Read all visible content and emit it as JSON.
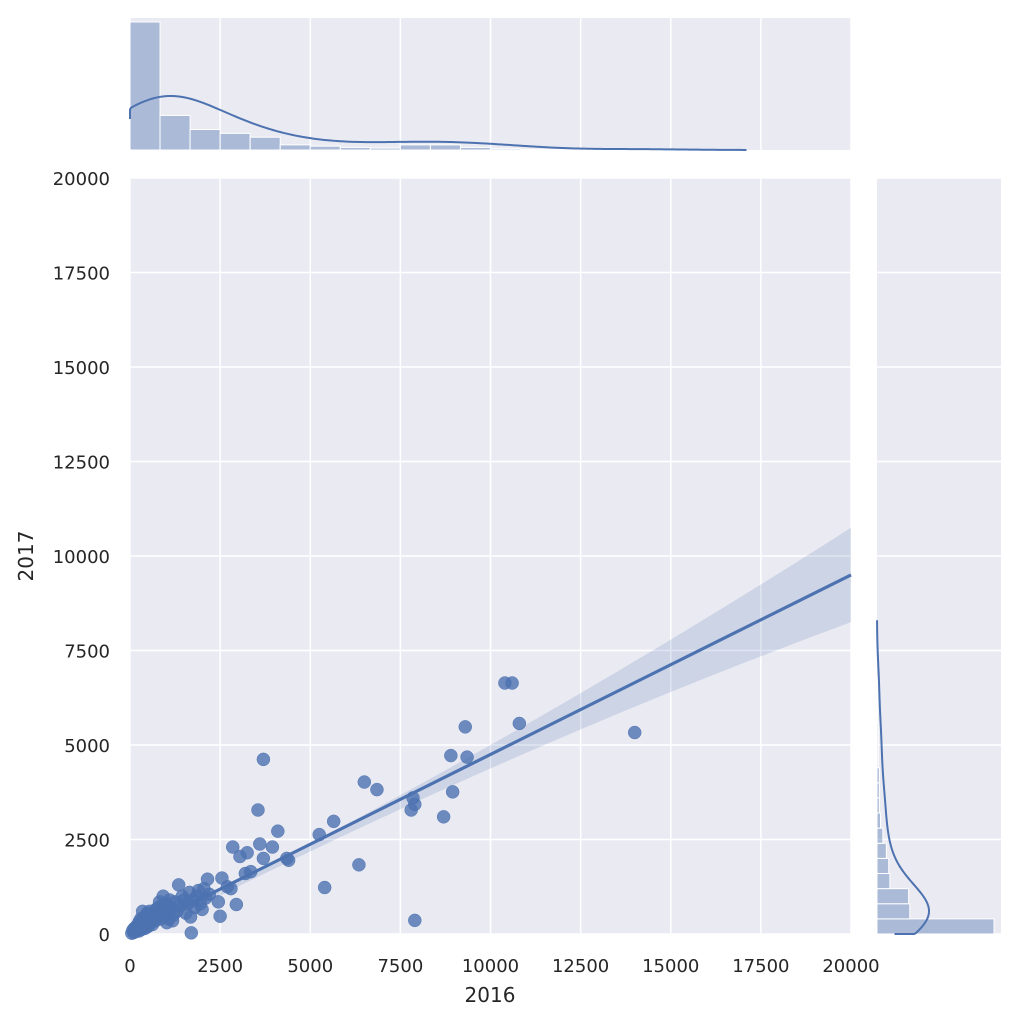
{
  "chart_data": {
    "type": "scatter",
    "kind": "jointplot with regression line, confidence band, marginal histograms and KDE",
    "xlabel": "2016",
    "ylabel": "2017",
    "xlim": [
      0,
      20000
    ],
    "ylim": [
      0,
      20000
    ],
    "x_ticks": [
      "0",
      "2500",
      "5000",
      "7500",
      "10000",
      "12500",
      "15000",
      "17500",
      "20000"
    ],
    "y_ticks": [
      "0",
      "2500",
      "5000",
      "7500",
      "10000",
      "12500",
      "15000",
      "17500",
      "20000"
    ],
    "grid": true,
    "colors": {
      "points": "#4c72b0",
      "line": "#4c72b0",
      "band": "#4c72b0",
      "hist": "#4c72b0",
      "background": "#eaeaf2",
      "grid": "#ffffff"
    },
    "regression": {
      "intercept": -120,
      "slope": 0.481,
      "band_half_width_at_xmax": 1250
    },
    "points": [
      [
        50,
        20
      ],
      [
        80,
        100
      ],
      [
        100,
        40
      ],
      [
        120,
        150
      ],
      [
        150,
        60
      ],
      [
        180,
        200
      ],
      [
        200,
        120
      ],
      [
        220,
        250
      ],
      [
        250,
        80
      ],
      [
        260,
        330
      ],
      [
        280,
        180
      ],
      [
        300,
        400
      ],
      [
        320,
        120
      ],
      [
        350,
        600
      ],
      [
        380,
        250
      ],
      [
        400,
        450
      ],
      [
        420,
        150
      ],
      [
        450,
        350
      ],
      [
        480,
        550
      ],
      [
        500,
        200
      ],
      [
        520,
        420
      ],
      [
        540,
        600
      ],
      [
        560,
        300
      ],
      [
        600,
        500
      ],
      [
        620,
        250
      ],
      [
        650,
        400
      ],
      [
        680,
        550
      ],
      [
        700,
        350
      ],
      [
        720,
        650
      ],
      [
        750,
        450
      ],
      [
        780,
        700
      ],
      [
        800,
        550
      ],
      [
        820,
        850
      ],
      [
        850,
        400
      ],
      [
        880,
        600
      ],
      [
        900,
        750
      ],
      [
        920,
        1000
      ],
      [
        950,
        500
      ],
      [
        980,
        800
      ],
      [
        1000,
        650
      ],
      [
        1020,
        300
      ],
      [
        1050,
        550
      ],
      [
        1080,
        400
      ],
      [
        1100,
        900
      ],
      [
        1150,
        700
      ],
      [
        1180,
        350
      ],
      [
        1200,
        500
      ],
      [
        1250,
        850
      ],
      [
        1300,
        600
      ],
      [
        1350,
        1300
      ],
      [
        1400,
        750
      ],
      [
        1450,
        1000
      ],
      [
        1500,
        900
      ],
      [
        1550,
        550
      ],
      [
        1600,
        800
      ],
      [
        1650,
        1100
      ],
      [
        1680,
        450
      ],
      [
        1700,
        30
      ],
      [
        1750,
        900
      ],
      [
        1800,
        700
      ],
      [
        1850,
        1000
      ],
      [
        1900,
        1150
      ],
      [
        1950,
        800
      ],
      [
        2000,
        650
      ],
      [
        2050,
        1200
      ],
      [
        2100,
        950
      ],
      [
        2150,
        1450
      ],
      [
        2200,
        1050
      ],
      [
        2450,
        850
      ],
      [
        2500,
        470
      ],
      [
        2550,
        1480
      ],
      [
        2700,
        1250
      ],
      [
        2800,
        1200
      ],
      [
        2850,
        2300
      ],
      [
        2950,
        780
      ],
      [
        3050,
        2050
      ],
      [
        3200,
        1600
      ],
      [
        3250,
        2150
      ],
      [
        3350,
        1650
      ],
      [
        3550,
        3280
      ],
      [
        3600,
        2380
      ],
      [
        3700,
        4620
      ],
      [
        3700,
        2000
      ],
      [
        3950,
        2300
      ],
      [
        4100,
        2720
      ],
      [
        4350,
        2000
      ],
      [
        4400,
        1950
      ],
      [
        5250,
        2630
      ],
      [
        5400,
        1230
      ],
      [
        5650,
        2980
      ],
      [
        6350,
        1830
      ],
      [
        6500,
        4020
      ],
      [
        6850,
        3820
      ],
      [
        7800,
        3280
      ],
      [
        7850,
        3600
      ],
      [
        7900,
        3430
      ],
      [
        7900,
        360
      ],
      [
        8700,
        3100
      ],
      [
        8900,
        4720
      ],
      [
        8950,
        3760
      ],
      [
        9300,
        5480
      ],
      [
        9350,
        4680
      ],
      [
        10400,
        6640
      ],
      [
        10600,
        6640
      ],
      [
        10800,
        5570
      ],
      [
        14000,
        5330
      ]
    ],
    "top_histogram": {
      "bin_edges": [
        0,
        833,
        1667,
        2500,
        3333,
        4167,
        5000,
        5833,
        6667,
        7500,
        8333,
        9167,
        10000,
        10833,
        11667,
        12500,
        13333,
        14167
      ],
      "densities": [
        1.0,
        0.27,
        0.16,
        0.13,
        0.1,
        0.04,
        0.03,
        0.02,
        0.015,
        0.04,
        0.04,
        0.02,
        0.01,
        0.005,
        0.003,
        0.002,
        0.002
      ]
    },
    "right_histogram": {
      "bin_edges": [
        0,
        400,
        800,
        1200,
        1600,
        2000,
        2400,
        2800,
        3200,
        3600,
        4000,
        4400,
        4800,
        5200,
        5600,
        6000,
        6400,
        6800
      ],
      "densities": [
        1.0,
        0.28,
        0.27,
        0.11,
        0.1,
        0.08,
        0.05,
        0.03,
        0.02,
        0.02,
        0.02,
        0.01,
        0.01,
        0.01,
        0.005,
        0.005,
        0.005
      ]
    }
  }
}
